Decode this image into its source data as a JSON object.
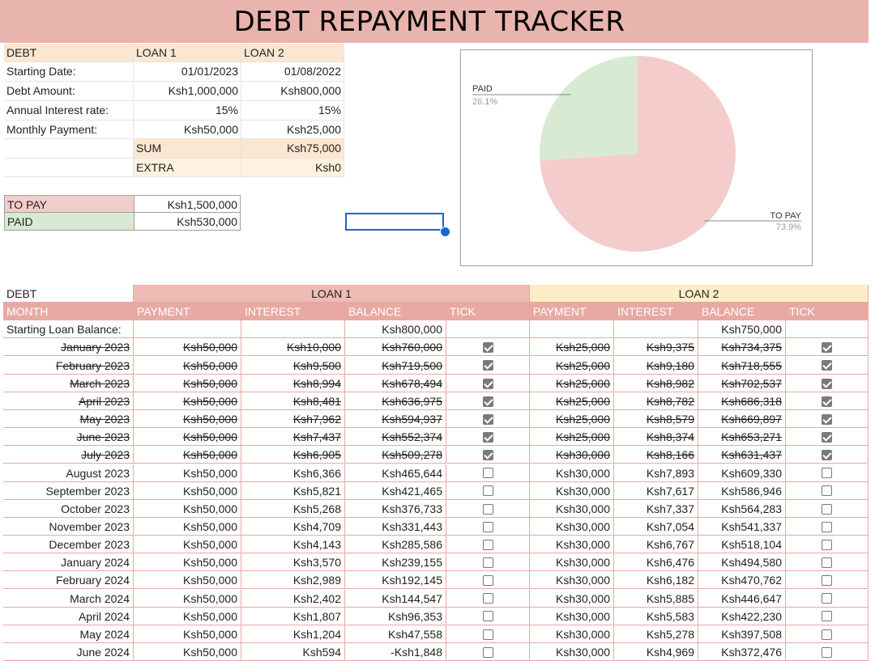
{
  "title": "DEBT REPAYMENT TRACKER",
  "summary": {
    "header": {
      "label": "DEBT",
      "loan1": "LOAN 1",
      "loan2": "LOAN 2"
    },
    "rows": [
      {
        "label": "Starting Date:",
        "loan1": "01/01/2023",
        "loan2": "01/08/2022"
      },
      {
        "label": "Debt Amount:",
        "loan1": "Ksh1,000,000",
        "loan2": "Ksh800,000"
      },
      {
        "label": "Annual Interest rate:",
        "loan1": "15%",
        "loan2": "15%"
      },
      {
        "label": "Monthly Payment:",
        "loan1": "Ksh50,000",
        "loan2": "Ksh25,000"
      }
    ],
    "sum": {
      "label": "SUM",
      "value": "Ksh75,000"
    },
    "extra": {
      "label": "EXTRA",
      "value": "Ksh0"
    }
  },
  "totals": {
    "to_pay": {
      "label": "TO PAY",
      "value": "Ksh1,500,000"
    },
    "paid": {
      "label": "PAID",
      "value": "Ksh530,000"
    }
  },
  "chart_data": {
    "type": "pie",
    "slices": [
      {
        "label": "TO PAY",
        "percent_label": "73.9%",
        "value": 73.9,
        "color": "#f4cccc"
      },
      {
        "label": "PAID",
        "percent_label": "26.1%",
        "value": 26.1,
        "color": "#d9ead3"
      }
    ]
  },
  "table": {
    "debt_label": "DEBT",
    "loan1_label": "LOAN 1",
    "loan2_label": "LOAN 2",
    "columns": {
      "month": "MONTH",
      "payment": "PAYMENT",
      "interest": "INTEREST",
      "balance": "BALANCE",
      "tick": "TICK"
    },
    "starting": {
      "label": "Starting Loan Balance:",
      "loan1_balance": "Ksh800,000",
      "loan2_balance": "Ksh750,000"
    },
    "rows": [
      {
        "month": "January 2023",
        "p1": "Ksh50,000",
        "i1": "Ksh10,000",
        "b1": "Ksh760,000",
        "t1": true,
        "p2": "Ksh25,000",
        "i2": "Ksh9,375",
        "b2": "Ksh734,375",
        "t2": true
      },
      {
        "month": "February 2023",
        "p1": "Ksh50,000",
        "i1": "Ksh9,500",
        "b1": "Ksh719,500",
        "t1": true,
        "p2": "Ksh25,000",
        "i2": "Ksh9,180",
        "b2": "Ksh718,555",
        "t2": true
      },
      {
        "month": "March 2023",
        "p1": "Ksh50,000",
        "i1": "Ksh8,994",
        "b1": "Ksh678,494",
        "t1": true,
        "p2": "Ksh25,000",
        "i2": "Ksh8,982",
        "b2": "Ksh702,537",
        "t2": true
      },
      {
        "month": "April 2023",
        "p1": "Ksh50,000",
        "i1": "Ksh8,481",
        "b1": "Ksh636,975",
        "t1": true,
        "p2": "Ksh25,000",
        "i2": "Ksh8,782",
        "b2": "Ksh686,318",
        "t2": true
      },
      {
        "month": "May 2023",
        "p1": "Ksh50,000",
        "i1": "Ksh7,962",
        "b1": "Ksh594,937",
        "t1": true,
        "p2": "Ksh25,000",
        "i2": "Ksh8,579",
        "b2": "Ksh669,897",
        "t2": true
      },
      {
        "month": "June 2023",
        "p1": "Ksh50,000",
        "i1": "Ksh7,437",
        "b1": "Ksh552,374",
        "t1": true,
        "p2": "Ksh25,000",
        "i2": "Ksh8,374",
        "b2": "Ksh653,271",
        "t2": true
      },
      {
        "month": "July 2023",
        "p1": "Ksh50,000",
        "i1": "Ksh6,905",
        "b1": "Ksh509,278",
        "t1": true,
        "p2": "Ksh30,000",
        "i2": "Ksh8,166",
        "b2": "Ksh631,437",
        "t2": true
      },
      {
        "month": "August 2023",
        "p1": "Ksh50,000",
        "i1": "Ksh6,366",
        "b1": "Ksh465,644",
        "t1": false,
        "p2": "Ksh30,000",
        "i2": "Ksh7,893",
        "b2": "Ksh609,330",
        "t2": false
      },
      {
        "month": "September 2023",
        "p1": "Ksh50,000",
        "i1": "Ksh5,821",
        "b1": "Ksh421,465",
        "t1": false,
        "p2": "Ksh30,000",
        "i2": "Ksh7,617",
        "b2": "Ksh586,946",
        "t2": false
      },
      {
        "month": "October 2023",
        "p1": "Ksh50,000",
        "i1": "Ksh5,268",
        "b1": "Ksh376,733",
        "t1": false,
        "p2": "Ksh30,000",
        "i2": "Ksh7,337",
        "b2": "Ksh564,283",
        "t2": false
      },
      {
        "month": "November 2023",
        "p1": "Ksh50,000",
        "i1": "Ksh4,709",
        "b1": "Ksh331,443",
        "t1": false,
        "p2": "Ksh30,000",
        "i2": "Ksh7,054",
        "b2": "Ksh541,337",
        "t2": false
      },
      {
        "month": "December 2023",
        "p1": "Ksh50,000",
        "i1": "Ksh4,143",
        "b1": "Ksh285,586",
        "t1": false,
        "p2": "Ksh30,000",
        "i2": "Ksh6,767",
        "b2": "Ksh518,104",
        "t2": false
      },
      {
        "month": "January 2024",
        "p1": "Ksh50,000",
        "i1": "Ksh3,570",
        "b1": "Ksh239,155",
        "t1": false,
        "p2": "Ksh30,000",
        "i2": "Ksh6,476",
        "b2": "Ksh494,580",
        "t2": false
      },
      {
        "month": "February 2024",
        "p1": "Ksh50,000",
        "i1": "Ksh2,989",
        "b1": "Ksh192,145",
        "t1": false,
        "p2": "Ksh30,000",
        "i2": "Ksh6,182",
        "b2": "Ksh470,762",
        "t2": false
      },
      {
        "month": "March 2024",
        "p1": "Ksh50,000",
        "i1": "Ksh2,402",
        "b1": "Ksh144,547",
        "t1": false,
        "p2": "Ksh30,000",
        "i2": "Ksh5,885",
        "b2": "Ksh446,647",
        "t2": false
      },
      {
        "month": "April 2024",
        "p1": "Ksh50,000",
        "i1": "Ksh1,807",
        "b1": "Ksh96,353",
        "t1": false,
        "p2": "Ksh30,000",
        "i2": "Ksh5,583",
        "b2": "Ksh422,230",
        "t2": false
      },
      {
        "month": "May 2024",
        "p1": "Ksh50,000",
        "i1": "Ksh1,204",
        "b1": "Ksh47,558",
        "t1": false,
        "p2": "Ksh30,000",
        "i2": "Ksh5,278",
        "b2": "Ksh397,508",
        "t2": false
      },
      {
        "month": "June 2024",
        "p1": "Ksh50,000",
        "i1": "Ksh594",
        "b1": "-Ksh1,848",
        "t1": false,
        "p2": "Ksh30,000",
        "i2": "Ksh4,969",
        "b2": "Ksh372,476",
        "t2": false
      }
    ]
  }
}
